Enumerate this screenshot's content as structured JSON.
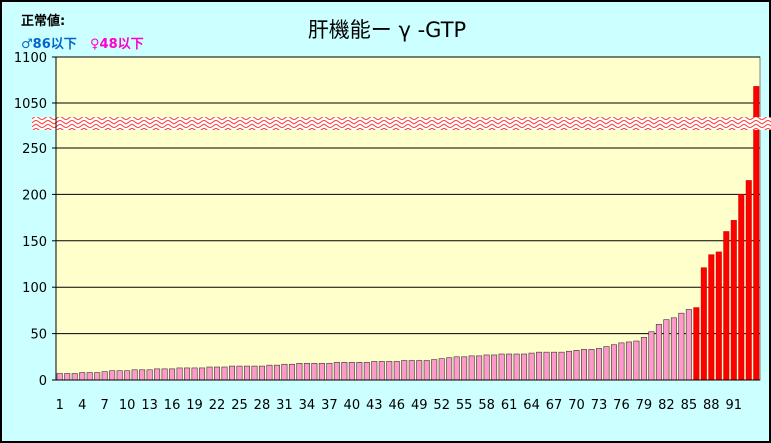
{
  "normal_values": {
    "label": "正常値:",
    "male": "♂86以下",
    "female": "♀48以下"
  },
  "colors": {
    "background": "#ccffff",
    "plot_area": "#ffffcc",
    "normal_bar": "#ff99cc",
    "high_bar": "#ff0000",
    "male_text": "#0066cc",
    "female_text": "#ff00cc"
  },
  "chart_data": {
    "type": "bar",
    "title": "肝機能ー γ -GTP",
    "xlabel": "",
    "ylabel": "",
    "y_axis_break": {
      "lower": [
        0,
        275
      ],
      "upper": [
        1025,
        1100
      ]
    },
    "y_ticks": [
      0,
      50,
      100,
      150,
      200,
      250,
      1050,
      1100
    ],
    "x_tick_labels": [
      "1",
      "4",
      "7",
      "10",
      "13",
      "16",
      "19",
      "22",
      "25",
      "28",
      "31",
      "34",
      "37",
      "40",
      "43",
      "46",
      "49",
      "52",
      "55",
      "58",
      "61",
      "64",
      "67",
      "70",
      "73",
      "76",
      "79",
      "82",
      "85",
      "88",
      "91"
    ],
    "x_tick_every": 3,
    "high_threshold_index": 86,
    "grid": true,
    "legend": "none",
    "values": [
      7,
      7,
      7,
      8,
      8,
      8,
      9,
      10,
      10,
      10,
      11,
      11,
      11,
      12,
      12,
      12,
      13,
      13,
      13,
      13,
      14,
      14,
      14,
      15,
      15,
      15,
      15,
      15,
      16,
      16,
      17,
      17,
      18,
      18,
      18,
      18,
      18,
      19,
      19,
      19,
      19,
      19,
      20,
      20,
      20,
      20,
      21,
      21,
      21,
      21,
      22,
      23,
      24,
      25,
      25,
      26,
      26,
      27,
      27,
      28,
      28,
      28,
      28,
      29,
      30,
      30,
      30,
      30,
      31,
      32,
      33,
      33,
      34,
      36,
      38,
      40,
      41,
      42,
      46,
      52,
      60,
      65,
      67,
      72,
      76,
      78,
      121,
      135,
      138,
      160,
      172,
      200,
      215,
      1068
    ]
  }
}
